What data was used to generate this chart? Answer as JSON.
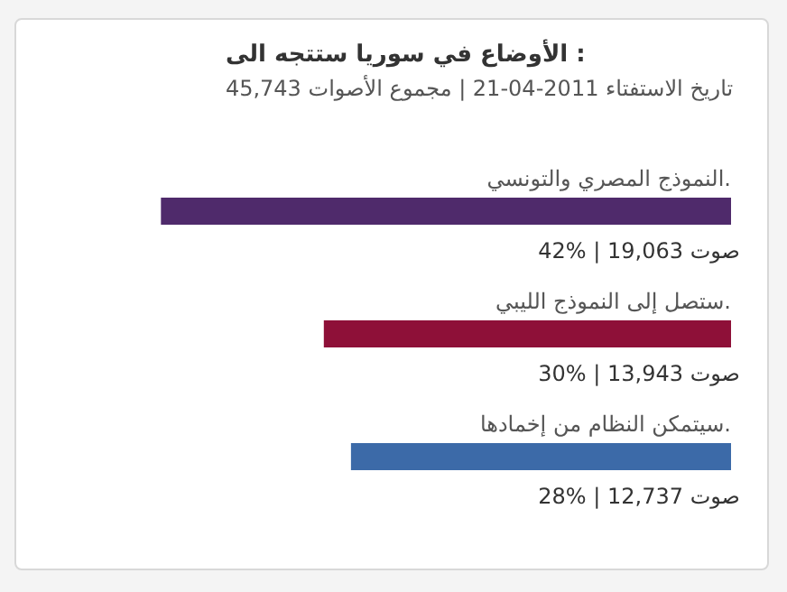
{
  "chart_data": {
    "type": "bar",
    "orientation": "horizontal",
    "title": "الأوضاع في سوريا ستتجه الى :",
    "subtitle": "تاريخ الاستفتاء 2011-04-21 | مجموع الأصوات 45,743",
    "categories": [
      "النموذج المصري والتونسي.",
      "ستصل إلى النموذج الليبي.",
      "سيتمكن النظام من إخمادها."
    ],
    "values": [
      42,
      30,
      28
    ],
    "colors": [
      "#4f2a6b",
      "#8e1038",
      "#3c6aa8"
    ],
    "value_labels": [
      "42% | 19,063 صوت",
      "30% | 13,943 صوت",
      "28% | 12,737 صوت"
    ]
  }
}
